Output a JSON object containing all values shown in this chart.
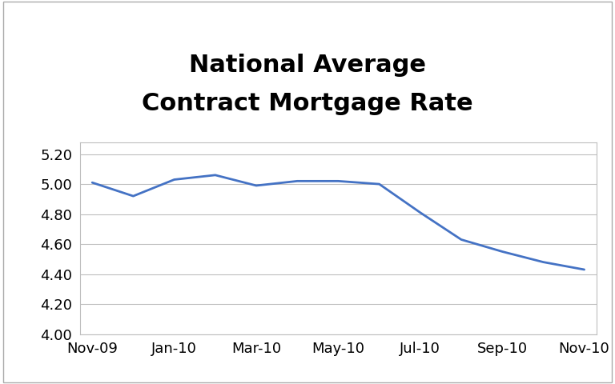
{
  "title": "National Average\nContract Mortgage Rate",
  "x_labels": [
    "Nov-09",
    "Jan-10",
    "Mar-10",
    "May-10",
    "Jul-10",
    "Sep-10",
    "Nov-10"
  ],
  "x_values": [
    0,
    2,
    4,
    6,
    8,
    10,
    12
  ],
  "y_data_x": [
    0,
    1,
    2,
    3,
    4,
    5,
    6,
    7,
    8,
    9,
    10,
    11,
    12
  ],
  "y_data_y": [
    5.01,
    4.92,
    5.03,
    5.06,
    4.99,
    5.02,
    5.02,
    5.0,
    4.81,
    4.63,
    4.55,
    4.48,
    4.43
  ],
  "ylim": [
    4.0,
    5.28
  ],
  "yticks": [
    4.0,
    4.2,
    4.4,
    4.6,
    4.8,
    5.0,
    5.2
  ],
  "line_color": "#4472C4",
  "line_width": 2.0,
  "background_color": "#FFFFFF",
  "plot_area_color": "#FFFFFF",
  "grid_color": "#BEBEBE",
  "title_fontsize": 22,
  "title_fontweight": "bold",
  "tick_fontsize": 13,
  "outer_border_color": "#AAAAAA"
}
